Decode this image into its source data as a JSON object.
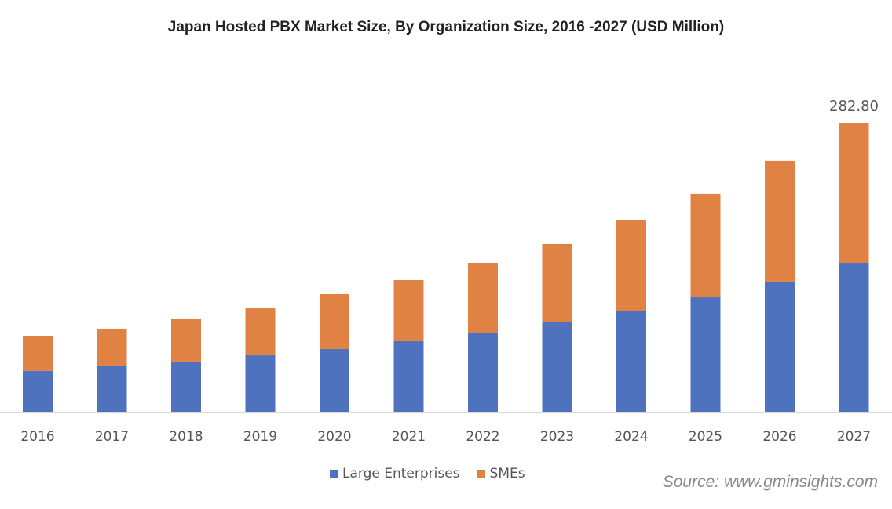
{
  "chart_data": {
    "type": "bar",
    "stacked": true,
    "title": "Japan Hosted PBX Market Size, By Organization  Size, 2016 -2027 (USD Million)",
    "categories": [
      "2016",
      "2017",
      "2018",
      "2019",
      "2020",
      "2021",
      "2022",
      "2023",
      "2024",
      "2025",
      "2026",
      "2027"
    ],
    "series": [
      {
        "name": "Large Enterprises",
        "color": "#4F72BE",
        "values": [
          40.0,
          44.6,
          49.2,
          55.3,
          61.5,
          69.2,
          76.9,
          87.6,
          98.4,
          112.2,
          127.6,
          146.0
        ]
      },
      {
        "name": "SMEs",
        "color": "#DF8244",
        "values": [
          33.8,
          36.9,
          41.5,
          46.1,
          53.8,
          59.9,
          69.1,
          76.9,
          89.1,
          101.5,
          118.4,
          136.8
        ]
      }
    ],
    "data_labels": [
      {
        "category": "2027",
        "text": "282.80"
      }
    ],
    "ylim": [
      0,
      290
    ],
    "grid": false,
    "legend": "bottom",
    "xlabel": "",
    "ylabel": ""
  },
  "source": "Source: www.gminsights.com"
}
